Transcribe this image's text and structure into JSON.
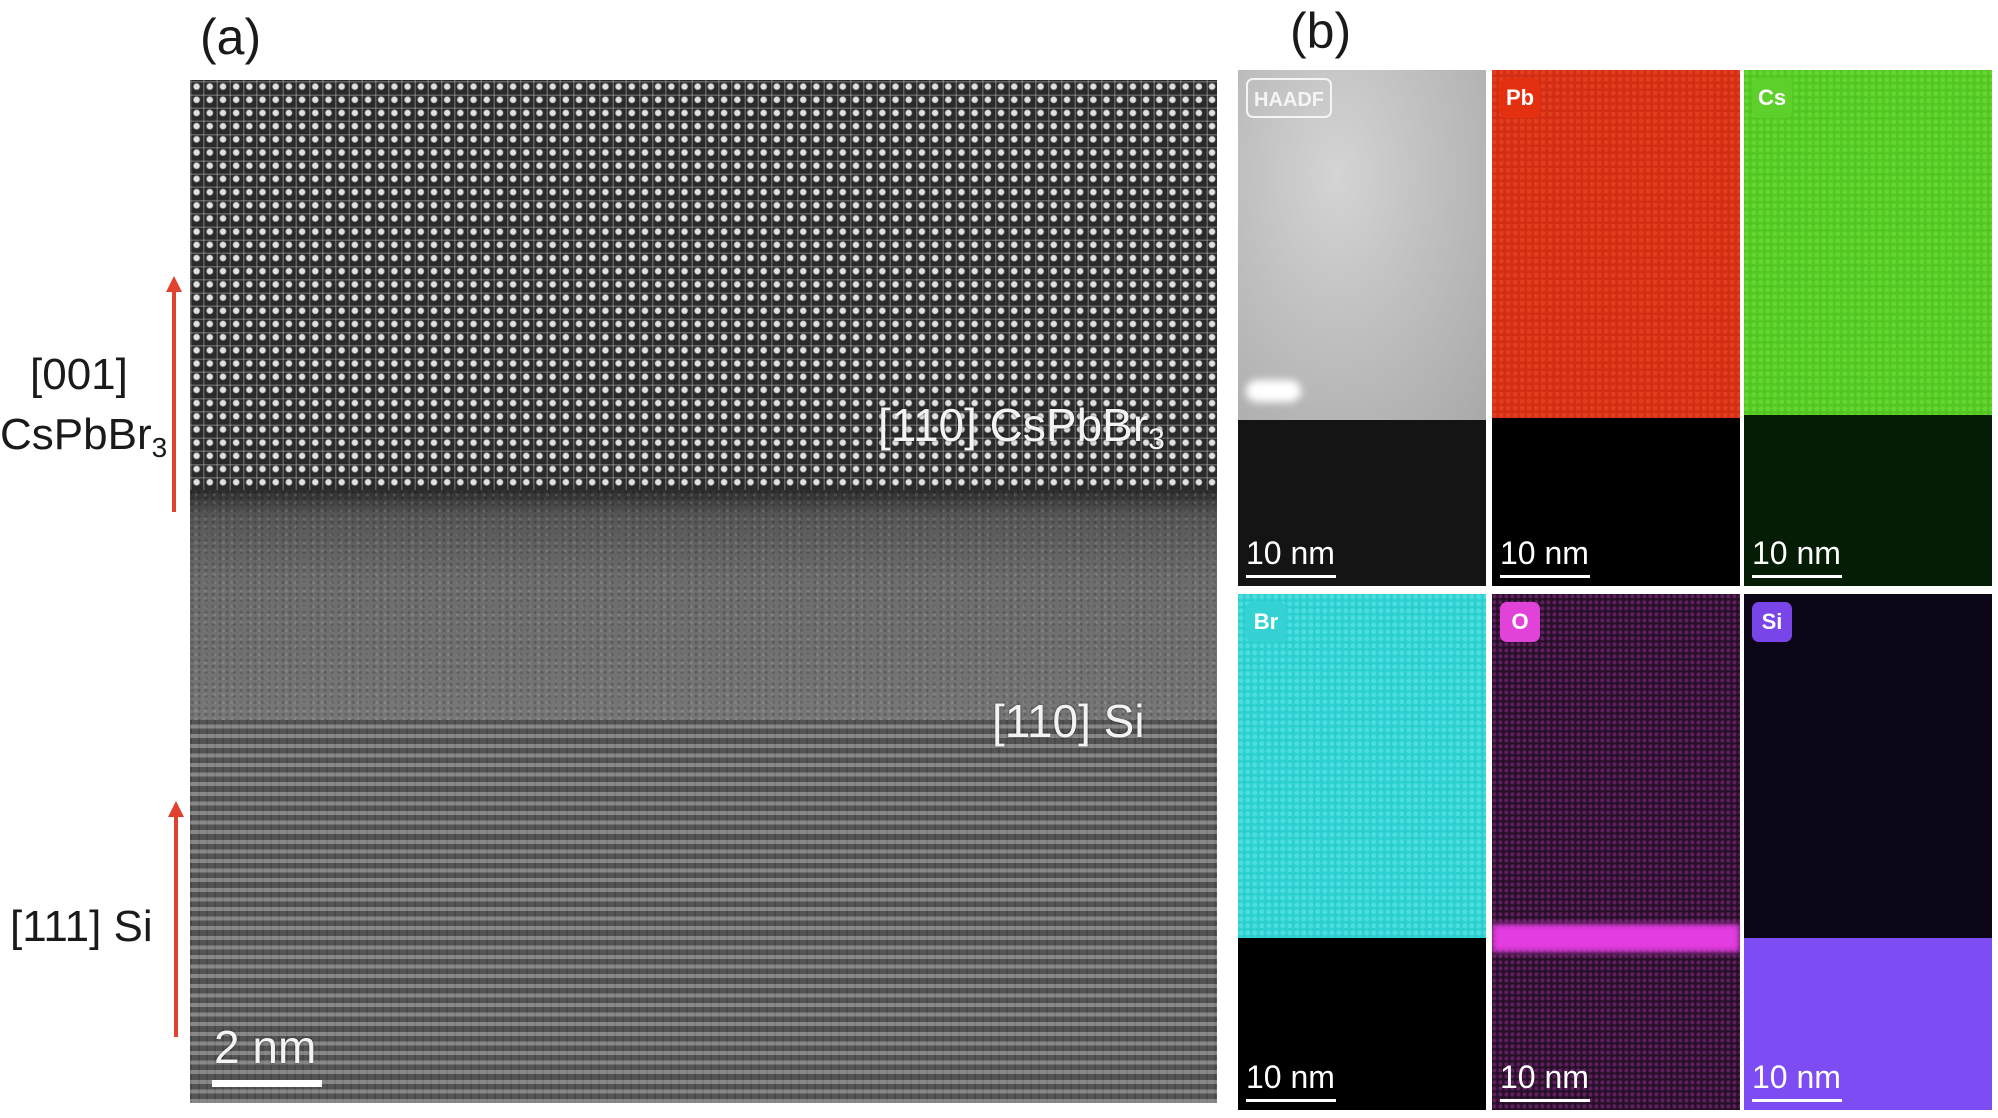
{
  "panel_a": {
    "letter": "(a)",
    "labels": {
      "cspbbr3_zone": "[110] CsPbBr",
      "cspbbr3_sub": "3",
      "si_zone": "[110] Si",
      "scale_bar": "2 nm"
    },
    "side_annotations": {
      "top_line1": "[001]",
      "top_line2": "CsPbBr",
      "top_line2_sub": "3",
      "bottom": "[111] Si"
    }
  },
  "panel_b": {
    "letter": "(b)",
    "maps": [
      {
        "tag": "HAADF",
        "scale": "10 nm"
      },
      {
        "tag": "Pb",
        "scale": "10 nm"
      },
      {
        "tag": "Cs",
        "scale": "10 nm"
      },
      {
        "tag": "Br",
        "scale": "10 nm"
      },
      {
        "tag": "O",
        "scale": "10 nm"
      },
      {
        "tag": "Si",
        "scale": "10 nm"
      }
    ]
  },
  "colors": {
    "arrow": "#e0422f",
    "pb": "#d32e14",
    "cs": "#52c623",
    "br": "#2ccfd0",
    "o": "#e33ce0",
    "si": "#7d4cf3"
  }
}
